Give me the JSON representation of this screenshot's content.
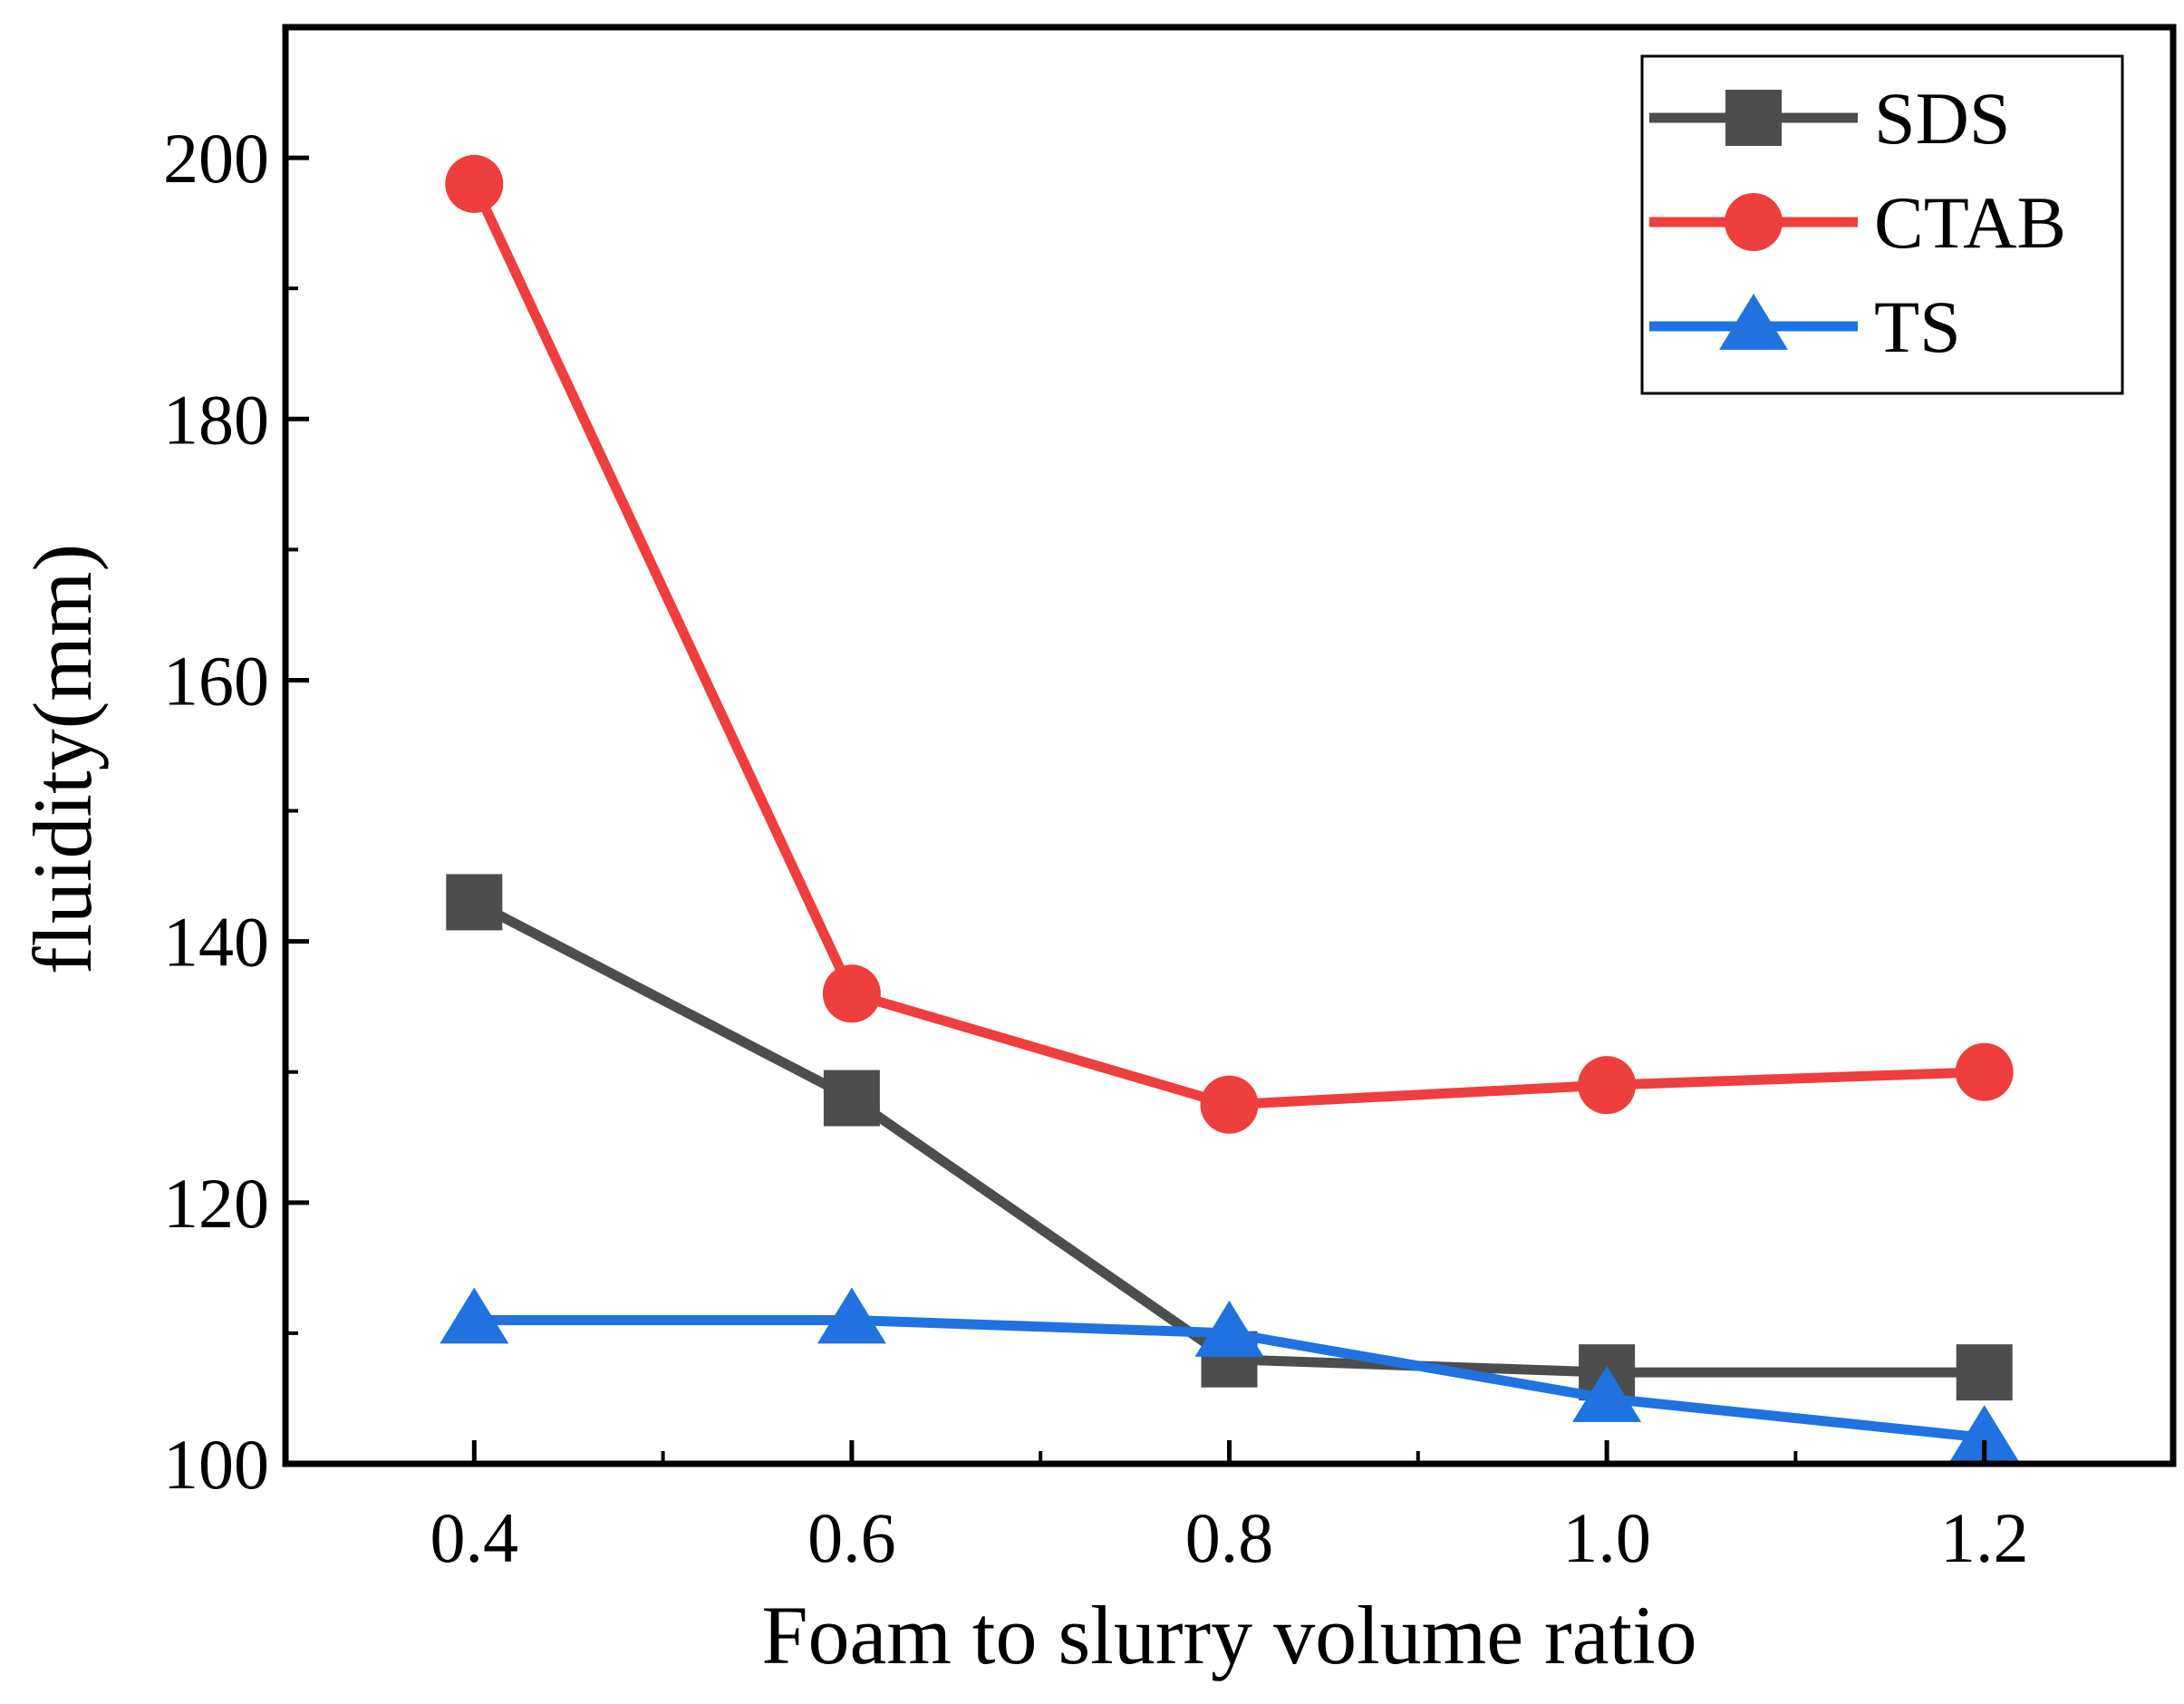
{
  "chart_data": {
    "type": "line",
    "title": "",
    "xlabel": "Foam to slurry volume ratio",
    "ylabel": "fluidity(mm)",
    "x": [
      0.4,
      0.6,
      0.8,
      1.0,
      1.2
    ],
    "x_ticks": [
      "0.4",
      "0.6",
      "0.8",
      "1.0",
      "1.2"
    ],
    "y_ticks": [
      "100",
      "120",
      "140",
      "160",
      "180",
      "200"
    ],
    "xlim": [
      0.3,
      1.3
    ],
    "ylim": [
      100,
      210
    ],
    "grid": false,
    "legend_position": "top-right",
    "series": [
      {
        "name": "SDS",
        "marker": "square",
        "color": "#4d4d4d",
        "values": [
          143,
          128,
          108,
          107,
          107
        ]
      },
      {
        "name": "CTAB",
        "marker": "circle",
        "color": "#ef3e3e",
        "values": [
          198,
          136,
          127.5,
          129,
          130
        ]
      },
      {
        "name": "TS",
        "marker": "triangle",
        "color": "#1f72e0",
        "values": [
          111,
          111,
          110,
          105,
          102
        ]
      }
    ]
  }
}
